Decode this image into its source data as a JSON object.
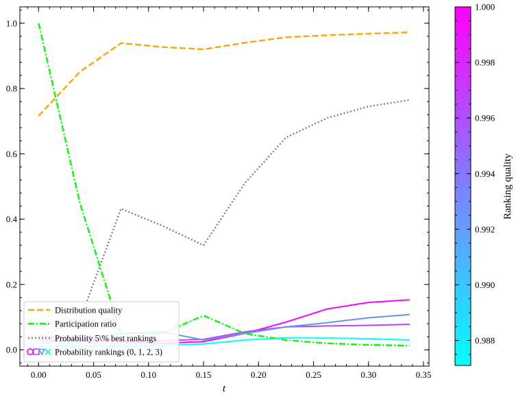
{
  "chart_data": {
    "type": "line",
    "xlabel": "t",
    "xlim": [
      -0.017,
      0.355
    ],
    "ylim": [
      -0.05,
      1.05
    ],
    "xticks": [
      0.0,
      0.05,
      0.1,
      0.15,
      0.2,
      0.25,
      0.3,
      0.35
    ],
    "xtick_labels": [
      "0.00",
      "0.05",
      "0.10",
      "0.15",
      "0.20",
      "0.25",
      "0.30",
      "0.35"
    ],
    "yticks": [
      0.0,
      0.2,
      0.4,
      0.6,
      0.8,
      1.0
    ],
    "ytick_labels": [
      "0.0",
      "0.2",
      "0.4",
      "0.6",
      "0.8",
      "1.0"
    ],
    "legend_position": "lower-left",
    "series": [
      {
        "name": "Distribution quality",
        "style": "dashed",
        "color": "#ffa500",
        "x": [
          0.0,
          0.0375,
          0.075,
          0.1125,
          0.15,
          0.1875,
          0.225,
          0.2625,
          0.3,
          0.3375
        ],
        "y": [
          0.716,
          0.851,
          0.939,
          0.927,
          0.92,
          0.94,
          0.957,
          0.963,
          0.968,
          0.972
        ]
      },
      {
        "name": "Participation ratio",
        "style": "dashdot",
        "color": "#00ff00",
        "x": [
          0.0,
          0.0375,
          0.075,
          0.1125,
          0.15,
          0.1875,
          0.225,
          0.2625,
          0.3,
          0.3375
        ],
        "y": [
          1.0,
          0.45,
          0.05,
          0.05,
          0.105,
          0.05,
          0.03,
          0.02,
          0.015,
          0.013
        ]
      },
      {
        "name": "Probability 5\\% best rankings",
        "style": "dotted",
        "color": "#808080",
        "x": [
          0.0,
          0.0375,
          0.075,
          0.1125,
          0.15,
          0.1875,
          0.225,
          0.2625,
          0.3,
          0.3375
        ],
        "y": [
          0.04,
          0.09,
          0.432,
          0.38,
          0.32,
          0.51,
          0.65,
          0.71,
          0.745,
          0.765
        ]
      },
      {
        "name": "Probability rankings (0, 1, 2, 3)",
        "style": "solid",
        "lines": [
          {
            "rank": 0,
            "color": "#ff00ff",
            "x": [
              0.0,
              0.0375,
              0.075,
              0.1125,
              0.15,
              0.1875,
              0.225,
              0.2625,
              0.3,
              0.3375
            ],
            "y": [
              0.03,
              0.03,
              0.025,
              0.02,
              0.025,
              0.05,
              0.085,
              0.125,
              0.145,
              0.153
            ]
          },
          {
            "rank": 1,
            "color": "#bf40ff",
            "x": [
              0.0,
              0.0375,
              0.075,
              0.1125,
              0.15,
              0.1875,
              0.225,
              0.2625,
              0.3,
              0.3375
            ],
            "y": [
              0.04,
              0.035,
              0.03,
              0.028,
              0.032,
              0.055,
              0.07,
              0.073,
              0.075,
              0.078
            ]
          },
          {
            "rank": 2,
            "color": "#6495ed",
            "x": [
              0.0,
              0.0375,
              0.075,
              0.1125,
              0.15,
              0.1875,
              0.225,
              0.2625,
              0.3,
              0.3375
            ],
            "y": [
              0.02,
              0.03,
              0.05,
              0.055,
              0.03,
              0.05,
              0.07,
              0.083,
              0.098,
              0.108
            ]
          },
          {
            "rank": 3,
            "color": "#00ffff",
            "x": [
              0.0,
              0.0375,
              0.075,
              0.1125,
              0.15,
              0.1875,
              0.225,
              0.2625,
              0.3,
              0.3375
            ],
            "y": [
              0.01,
              0.012,
              0.012,
              0.014,
              0.018,
              0.03,
              0.037,
              0.036,
              0.034,
              0.03
            ]
          }
        ]
      }
    ],
    "colorbar": {
      "label": "Ranking quality",
      "range": [
        0.9871,
        1.0
      ],
      "color_low": "#00ffff",
      "color_high": "#ff00ff",
      "ticks": [
        0.988,
        0.99,
        0.992,
        0.994,
        0.996,
        0.998,
        1.0
      ],
      "tick_labels": [
        "0.988",
        "0.990",
        "0.992",
        "0.994",
        "0.996",
        "0.998",
        "1.000"
      ]
    }
  }
}
